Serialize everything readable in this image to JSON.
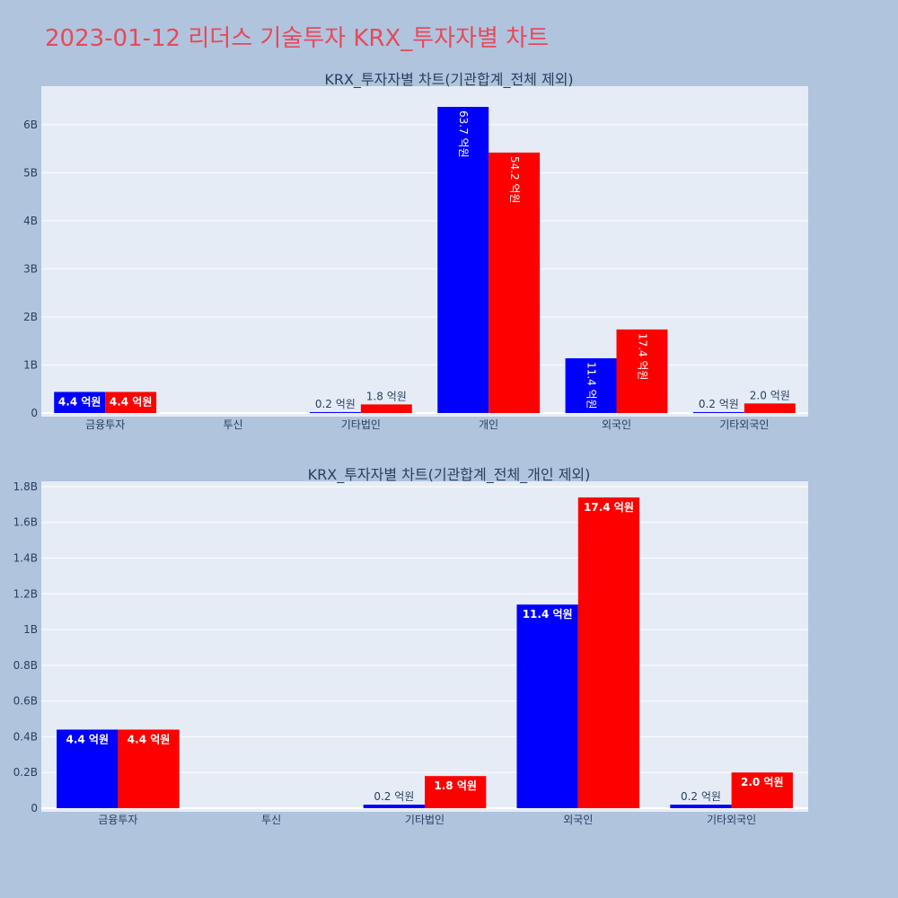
{
  "page": {
    "title": "2023-01-12 리더스 기술투자 KRX_투자자별 차트"
  },
  "colors": {
    "background": "#b0c4de",
    "plot_bg": "#e5ecf6",
    "grid": "#ffffff",
    "series_buy": "#0000ff",
    "series_sell": "#ff0000",
    "title": "#e8495a",
    "text": "#2a3f5f"
  },
  "chart_data": [
    {
      "type": "bar",
      "title": "KRX_투자자별 차트(기관합계_전체 제외)",
      "categories": [
        "금융투자",
        "투신",
        "기타법인",
        "개인",
        "외국인",
        "기타외국인"
      ],
      "yticks": [
        "0",
        "1B",
        "2B",
        "3B",
        "4B",
        "5B",
        "6B"
      ],
      "ylim": [
        0,
        6.8
      ],
      "unit": "B",
      "series": [
        {
          "values": [
            0.44,
            0.0,
            0.02,
            6.37,
            1.14,
            0.02
          ],
          "labels": [
            "4.4 억원",
            "",
            "0.2 억원",
            "63.7 억원",
            "11.4 억원",
            "0.2 억원"
          ]
        },
        {
          "values": [
            0.44,
            0.0,
            0.18,
            5.42,
            1.74,
            0.2
          ],
          "labels": [
            "4.4 억원",
            "",
            "1.8 억원",
            "54.2 억원",
            "17.4 억원",
            "2.0 억원"
          ]
        }
      ]
    },
    {
      "type": "bar",
      "title": "KRX_투자자별 차트(기관합계_전체_개인 제외)",
      "categories": [
        "금융투자",
        "투신",
        "기타법인",
        "외국인",
        "기타외국인"
      ],
      "yticks": [
        "0",
        "0.2B",
        "0.4B",
        "0.6B",
        "0.8B",
        "1B",
        "1.2B",
        "1.4B",
        "1.6B",
        "1.8B"
      ],
      "ylim": [
        0,
        1.83
      ],
      "unit": "B",
      "series": [
        {
          "values": [
            0.44,
            0.0,
            0.02,
            1.14,
            0.02
          ],
          "labels": [
            "4.4 억원",
            "",
            "0.2 억원",
            "11.4 억원",
            "0.2 억원"
          ]
        },
        {
          "values": [
            0.44,
            0.0,
            0.18,
            1.74,
            0.2
          ],
          "labels": [
            "4.4 억원",
            "",
            "1.8 억원",
            "17.4 억원",
            "2.0 억원"
          ]
        }
      ]
    }
  ]
}
